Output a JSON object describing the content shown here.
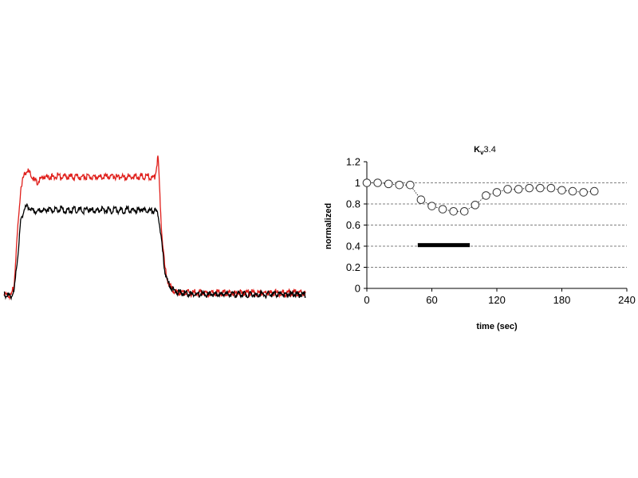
{
  "chart_data": [
    {
      "type": "line",
      "title": "",
      "xlabel": "",
      "ylabel": "",
      "series": [
        {
          "color": "#e0201c",
          "values": [
            0.03,
            0.03,
            0.02,
            0.1,
            0.5,
            0.86,
            0.96,
            1.0,
            0.96,
            0.92,
            0.9,
            0.93,
            0.95,
            0.94,
            0.95,
            0.94,
            0.95,
            0.94,
            0.95,
            0.94,
            0.95,
            0.94,
            0.95,
            0.94,
            0.95,
            0.94,
            0.95,
            0.94,
            0.95,
            0.94,
            0.94,
            0.95,
            0.94,
            0.95,
            0.94,
            0.95,
            0.94,
            0.95,
            0.94,
            0.95,
            0.94,
            0.95,
            0.94,
            0.95,
            0.94,
            0.94,
            1.1,
            0.55,
            0.25,
            0.13,
            0.08,
            0.06,
            0.05,
            0.05,
            0.04,
            0.05,
            0.04,
            0.05,
            0.04,
            0.05,
            0.05,
            0.04,
            0.05,
            0.04,
            0.05,
            0.04,
            0.05,
            0.04,
            0.05,
            0.04,
            0.05,
            0.04,
            0.05,
            0.04,
            0.05,
            0.04,
            0.04,
            0.05,
            0.04,
            0.05,
            0.04,
            0.05,
            0.04,
            0.05,
            0.04,
            0.05,
            0.04,
            0.05,
            0.04,
            0.05,
            0.04
          ]
        },
        {
          "color": "#000000",
          "values": [
            0.03,
            0.03,
            0.02,
            0.05,
            0.3,
            0.6,
            0.7,
            0.72,
            0.7,
            0.68,
            0.68,
            0.69,
            0.68,
            0.7,
            0.68,
            0.69,
            0.68,
            0.7,
            0.68,
            0.69,
            0.68,
            0.7,
            0.68,
            0.69,
            0.68,
            0.7,
            0.68,
            0.69,
            0.68,
            0.7,
            0.68,
            0.69,
            0.68,
            0.7,
            0.68,
            0.69,
            0.68,
            0.7,
            0.68,
            0.69,
            0.68,
            0.7,
            0.68,
            0.69,
            0.68,
            0.68,
            0.66,
            0.45,
            0.22,
            0.12,
            0.08,
            0.06,
            0.05,
            0.05,
            0.04,
            0.04,
            0.03,
            0.04,
            0.03,
            0.04,
            0.04,
            0.03,
            0.04,
            0.03,
            0.04,
            0.03,
            0.04,
            0.03,
            0.04,
            0.03,
            0.04,
            0.03,
            0.04,
            0.03,
            0.04,
            0.03,
            0.03,
            0.04,
            0.03,
            0.04,
            0.03,
            0.04,
            0.03,
            0.04,
            0.03,
            0.04,
            0.03,
            0.04,
            0.03,
            0.04,
            0.03
          ]
        }
      ]
    },
    {
      "type": "line",
      "title": "Kv3.4",
      "xlabel": "time (sec)",
      "ylabel": "normalized",
      "xlim": [
        0,
        240
      ],
      "ylim": [
        0,
        1.2
      ],
      "xticks": [
        "0",
        "60",
        "120",
        "180",
        "240"
      ],
      "yticks": [
        "0",
        "0.2",
        "0.4",
        "0.6",
        "0.8",
        "1",
        "1.2"
      ],
      "grid": "horizontal dashed",
      "series": [
        {
          "marker": "open-circle",
          "line": "dotted",
          "x": [
            0,
            10,
            20,
            30,
            40,
            50,
            60,
            70,
            80,
            90,
            100,
            110,
            120,
            130,
            140,
            150,
            160,
            170,
            180,
            190,
            200,
            210
          ],
          "y": [
            1.0,
            1.0,
            0.99,
            0.98,
            0.98,
            0.84,
            0.78,
            0.75,
            0.73,
            0.73,
            0.79,
            0.88,
            0.91,
            0.94,
            0.94,
            0.95,
            0.95,
            0.95,
            0.93,
            0.92,
            0.91,
            0.92
          ]
        }
      ],
      "bar_annotation": {
        "x_start": 47,
        "x_end": 95,
        "y": 0.41
      }
    }
  ]
}
